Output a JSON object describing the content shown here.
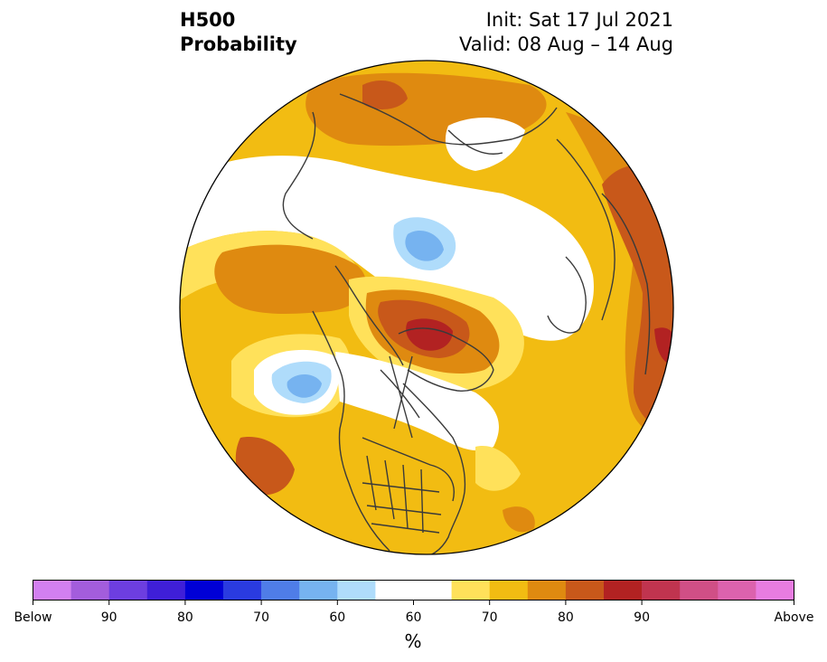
{
  "header": {
    "variable": "H500",
    "metric": "Probability",
    "init": "Init: Sat 17 Jul 2021",
    "valid": "Valid: 08 Aug – 14 Aug"
  },
  "map": {
    "projection": "north-polar-stereographic",
    "colors": {
      "above_55": "#ffe15a",
      "above_60": "#f2bc12",
      "above_65": "#df8a10",
      "above_70": "#c8581a",
      "above_75": "#b22222",
      "below_55": "#afdcfb",
      "below_60": "#76b3f0",
      "below_65": "#4f7de8",
      "coast": "#3a3a3a"
    }
  },
  "colorbar": {
    "colors": [
      "#d27ff0",
      "#a35ddc",
      "#6d3ee0",
      "#3f1fd8",
      "#0000d6",
      "#2a3be0",
      "#4f7de8",
      "#76b3f0",
      "#afdcfb",
      "#ffffff",
      "#ffffff",
      "#ffe15a",
      "#f2bc12",
      "#df8a10",
      "#c8581a",
      "#b22222",
      "#c0344f",
      "#d04f86",
      "#dc62ad",
      "#e87ce0"
    ],
    "labels": [
      "Below",
      "90",
      "80",
      "70",
      "60",
      "60",
      "70",
      "80",
      "90",
      "Above"
    ],
    "unit": "%"
  }
}
